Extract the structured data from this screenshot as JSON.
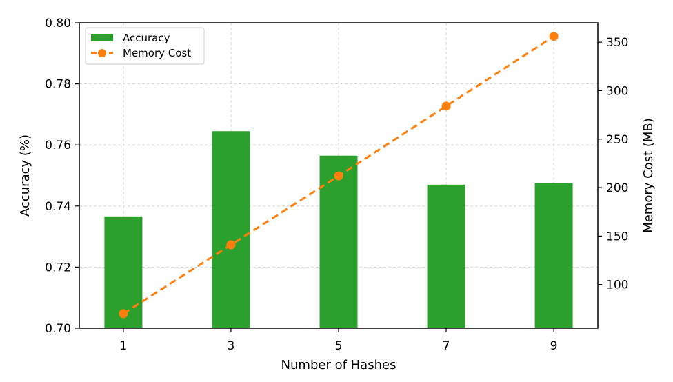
{
  "chart_data": {
    "type": "bar+line",
    "x_label": "Number of Hashes",
    "categories": [
      "1",
      "3",
      "5",
      "7",
      "9"
    ],
    "left_axis": {
      "label": "Accuracy (%)",
      "ylim": [
        0.7,
        0.8
      ],
      "ticks": [
        "0.70",
        "0.72",
        "0.74",
        "0.76",
        "0.78",
        "0.80"
      ]
    },
    "right_axis": {
      "label": "Memory Cost (MB)",
      "ylim": [
        55,
        370
      ],
      "ticks": [
        "100",
        "150",
        "200",
        "250",
        "300",
        "350"
      ]
    },
    "series": [
      {
        "name": "Accuracy",
        "kind": "bar",
        "axis": "left",
        "color": "#2ca02c",
        "values": [
          0.7366,
          0.7645,
          0.7565,
          0.747,
          0.7475
        ]
      },
      {
        "name": "Memory Cost",
        "kind": "line",
        "axis": "right",
        "color": "#ff7f0e",
        "style": "dashed",
        "marker": "circle",
        "values": [
          70,
          141,
          212,
          284,
          356
        ]
      }
    ],
    "grid": true,
    "legend_position": "upper-left"
  }
}
